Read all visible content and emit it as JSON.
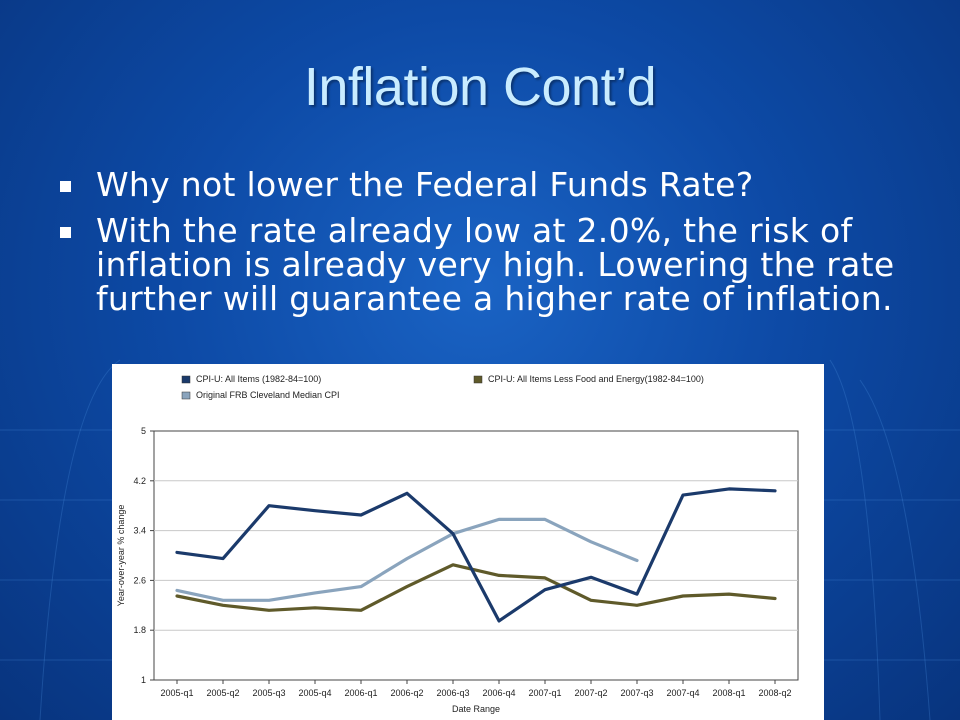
{
  "slide": {
    "title": "Inflation Cont’d",
    "bullets": [
      "Why not lower the Federal Funds Rate?",
      "With the rate already low at 2.0%, the risk of inflation is already very high.  Lowering the rate further will guarantee a higher rate of inflation."
    ]
  },
  "chart_data": {
    "type": "line",
    "categories": [
      "2005-q1",
      "2005-q2",
      "2005-q3",
      "2005-q4",
      "2006-q1",
      "2006-q2",
      "2006-q3",
      "2006-q4",
      "2007-q1",
      "2007-q2",
      "2007-q3",
      "2007-q4",
      "2008-q1",
      "2008-q2"
    ],
    "series": [
      {
        "name": "CPI-U: All Items (1982-84=100)",
        "color": "#1b3a6b",
        "values": [
          3.05,
          2.95,
          3.8,
          3.72,
          3.65,
          4.0,
          3.35,
          1.95,
          2.45,
          2.65,
          2.38,
          3.97,
          4.07,
          4.04
        ]
      },
      {
        "name": "CPI-U: All Items Less Food and Energy(1982-84=100)",
        "color": "#5f5a2a",
        "values": [
          2.35,
          2.2,
          2.12,
          2.16,
          2.12,
          2.5,
          2.85,
          2.68,
          2.64,
          2.28,
          2.2,
          2.35,
          2.38,
          2.31
        ]
      },
      {
        "name": "Original FRB Cleveland Median CPI",
        "color": "#8aa4bd",
        "values": [
          2.44,
          2.28,
          2.28,
          2.4,
          2.5,
          2.95,
          3.35,
          3.58,
          3.58,
          3.22,
          2.92,
          null,
          null,
          null
        ]
      }
    ],
    "xlabel": "Date Range",
    "ylabel": "Year-over-year % change",
    "ylim": [
      1,
      5
    ],
    "yticks": [
      "1",
      "1.8",
      "2.6",
      "3.4",
      "4.2",
      "5"
    ],
    "grid": true,
    "legend": "top"
  }
}
